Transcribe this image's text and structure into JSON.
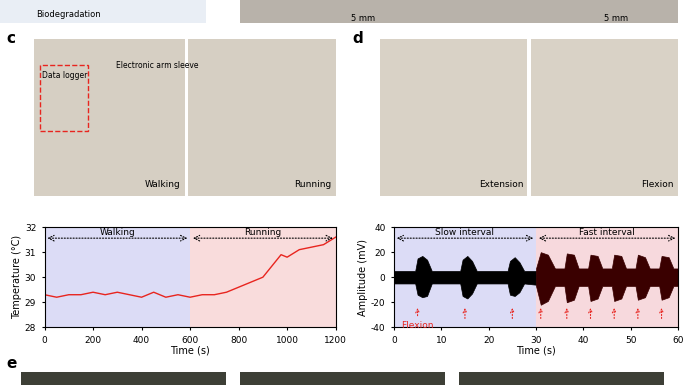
{
  "panel_labels": [
    "c",
    "d",
    "e"
  ],
  "top_strip": {
    "left_text": "Biodegradation",
    "scale_bars": [
      "5 mm",
      "5 mm"
    ]
  },
  "photos": {
    "c": {
      "captions": [
        "Walking",
        "Running"
      ],
      "callouts": [
        "Data logger",
        "Electronic arm sleeve"
      ]
    },
    "d": {
      "captions": [
        "Extension",
        "Flexion"
      ]
    }
  },
  "chart_data": [
    {
      "type": "line",
      "x_label": "Time (s)",
      "y_label": "Temperature (°C)",
      "x": [
        0,
        50,
        100,
        150,
        200,
        250,
        300,
        350,
        400,
        450,
        500,
        550,
        600,
        650,
        700,
        750,
        800,
        850,
        900,
        950,
        975,
        1000,
        1050,
        1100,
        1150,
        1200
      ],
      "values": [
        29.3,
        29.2,
        29.3,
        29.3,
        29.4,
        29.3,
        29.4,
        29.3,
        29.2,
        29.4,
        29.2,
        29.3,
        29.2,
        29.3,
        29.3,
        29.4,
        29.6,
        29.8,
        30.0,
        30.6,
        30.9,
        30.8,
        31.1,
        31.2,
        31.3,
        31.6
      ],
      "color": "#e8251f",
      "xlim": [
        0,
        1200
      ],
      "xticks": [
        0,
        200,
        400,
        600,
        800,
        1000,
        1200
      ],
      "ylim": [
        28,
        32
      ],
      "yticks": [
        28,
        29,
        30,
        31,
        32
      ],
      "regions": [
        {
          "label": "Walking",
          "start": 0,
          "end": 600,
          "color": "#dcdcf6"
        },
        {
          "label": "Running",
          "start": 600,
          "end": 1200,
          "color": "#f9dcdc"
        }
      ]
    },
    {
      "type": "area",
      "x_label": "Time (s)",
      "y_label": "Amplitude (mV)",
      "segments": [
        {
          "color": "#000000",
          "x": [
            0,
            4.5,
            5,
            6,
            7,
            8,
            14,
            14.5,
            15.5,
            16.5,
            17.5,
            24,
            24.5,
            25.5,
            26.5,
            27.5,
            30
          ],
          "upper": [
            5,
            5,
            15,
            17,
            14,
            5,
            5,
            14,
            17,
            13,
            5,
            5,
            13,
            16,
            12,
            5,
            5
          ],
          "lower": [
            -5,
            -5,
            -14,
            -16,
            -15,
            -5,
            -5,
            -15,
            -17,
            -13,
            -5,
            -5,
            -14,
            -15,
            -12,
            -5,
            -6
          ]
        },
        {
          "color": "#3a0000",
          "x": [
            30,
            31,
            32.5,
            34,
            36,
            36.5,
            38,
            39,
            41,
            41.5,
            43,
            44,
            46,
            46.5,
            48,
            49,
            51,
            51.5,
            53,
            54,
            56,
            56.5,
            58,
            59,
            60
          ],
          "upper": [
            7,
            20,
            18,
            7,
            7,
            19,
            18,
            7,
            7,
            18,
            17,
            7,
            7,
            18,
            17,
            7,
            7,
            18,
            16,
            7,
            7,
            17,
            16,
            7,
            7
          ],
          "lower": [
            -7,
            -22,
            -19,
            -7,
            -7,
            -20,
            -18,
            -7,
            -7,
            -19,
            -17,
            -7,
            -7,
            -19,
            -17,
            -7,
            -7,
            -18,
            -16,
            -7,
            -7,
            -18,
            -16,
            -7,
            -7
          ]
        }
      ],
      "annotation": {
        "text": "Flexion",
        "x": [
          5,
          15,
          25,
          31,
          36.5,
          41.5,
          46.5,
          51.5,
          56.5
        ],
        "color": "#e8251f"
      },
      "xlim": [
        0,
        60
      ],
      "xticks": [
        0,
        10,
        20,
        30,
        40,
        50,
        60
      ],
      "ylim": [
        -40,
        40
      ],
      "yticks": [
        -40,
        -20,
        0,
        20,
        40
      ],
      "regions": [
        {
          "label": "Slow interval",
          "start": 0,
          "end": 30,
          "color": "#dcdcf6"
        },
        {
          "label": "Fast interval",
          "start": 30,
          "end": 60,
          "color": "#f7d9dd"
        }
      ]
    }
  ]
}
